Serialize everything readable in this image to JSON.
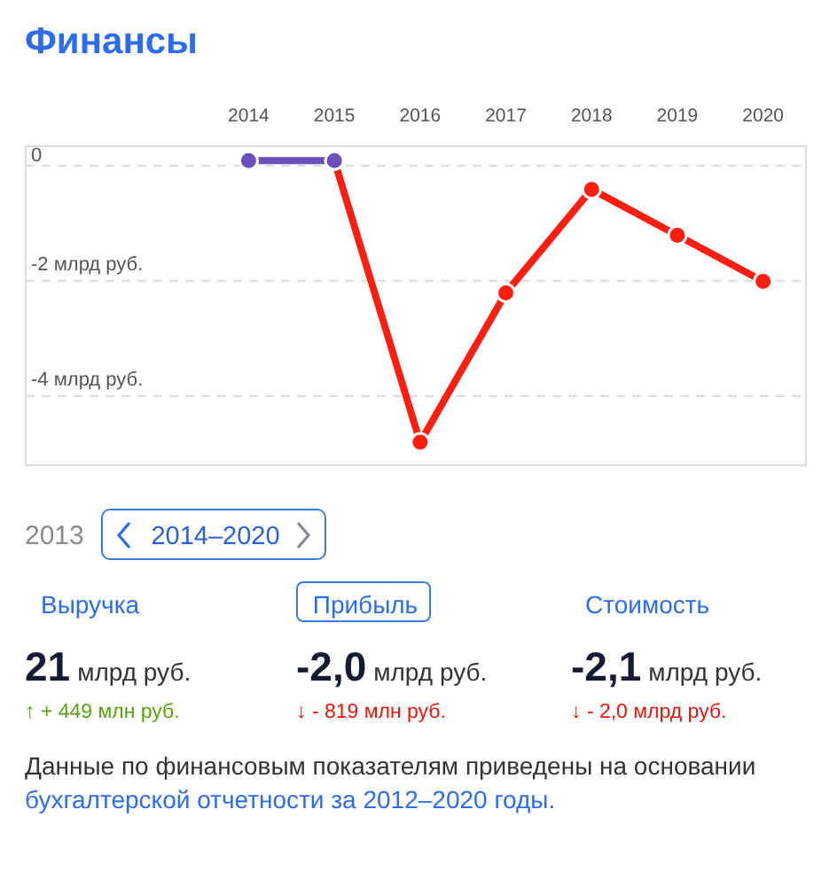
{
  "chart_data": {
    "type": "line",
    "title": "Финансы",
    "categories": [
      "2014",
      "2015",
      "2016",
      "2017",
      "2018",
      "2019",
      "2020"
    ],
    "series": [
      {
        "color": "#ff1f10",
        "values": [
          null,
          0.1,
          -4.8,
          -2.2,
          -0.4,
          -1.2,
          -2.0
        ]
      },
      {
        "color": "#6a4fbd",
        "values": [
          0.1,
          0.1,
          null,
          null,
          null,
          null,
          null
        ]
      }
    ],
    "ylim": [
      -5.2,
      0.35
    ],
    "yticks": [
      0,
      {
        "value": -2,
        "label": "-2 млрд руб."
      },
      {
        "value": -4,
        "label": "-4 млрд руб."
      }
    ],
    "grid": "y",
    "marker": "circle",
    "line_style": "solid",
    "annotations": [
      "2013",
      "2014–2020",
      "Выручка",
      "Прибыль",
      "Стоимость",
      "21",
      "млрд руб.",
      "-2,0",
      "млрд руб.",
      "-2,1",
      "млрд руб.",
      "↑ + 449 млн руб.",
      "↓ - 819 млн руб.",
      "↓ - 2,0 млрд руб.",
      "Данные по финансовым показателям приведены на основании",
      "бухгалтерской отчетности за 2012–2020 годы."
    ]
  }
}
